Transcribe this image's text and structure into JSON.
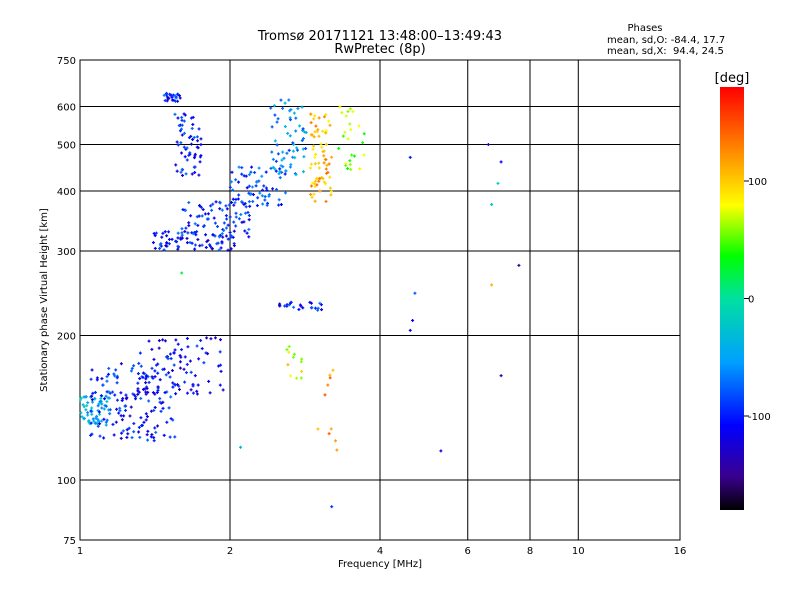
{
  "header": {
    "title_line1": "Tromsø 20171121 13:48:00–13:49:43",
    "title_line2": "RwPretec (8p)"
  },
  "phases_box": {
    "heading": "Phases",
    "line_o": "mean, sd,O: -84.4, 17.7",
    "line_x": "mean, sd,X:  94.4, 24.5"
  },
  "colorbar": {
    "label": "[deg]",
    "range": [
      -180,
      180
    ],
    "ticks": [
      {
        "value": 100,
        "label": "100"
      },
      {
        "value": 0,
        "label": "0"
      },
      {
        "value": -100,
        "label": "-100"
      }
    ]
  },
  "chart_data": {
    "type": "scatter",
    "title": "Tromsø 20171121 13:48:00–13:49:43",
    "subtitle": "RwPretec (8p)",
    "xlabel": "Frequency [MHz]",
    "ylabel": "Stationary phase Virtual Height [km]",
    "x_scale": "log2",
    "y_scale": "log",
    "xlim": [
      1,
      16
    ],
    "ylim": [
      75,
      750
    ],
    "x_ticks": [
      1,
      2,
      4,
      6,
      8,
      10,
      16
    ],
    "x_tick_labels": [
      "1",
      "2",
      "4",
      "6",
      "8",
      "10",
      "16"
    ],
    "x_gridlines": [
      2,
      4,
      6,
      8,
      10
    ],
    "y_ticks": [
      75,
      100,
      200,
      300,
      400,
      500,
      600,
      750
    ],
    "y_tick_labels": [
      "75",
      "100",
      "200",
      "300",
      "400",
      "500",
      "600",
      "750"
    ],
    "y_gridlines": [
      100,
      200,
      300,
      400,
      500,
      600
    ],
    "grid": true,
    "color_by": "phase (deg)",
    "point_groups": [
      {
        "x_range": [
          1.47,
          1.6
        ],
        "y_range": [
          615,
          640
        ],
        "n": 25,
        "phase": -95
      },
      {
        "x_range": [
          1.55,
          1.75
        ],
        "y_range": [
          430,
          580
        ],
        "n": 60,
        "phase": -100
      },
      {
        "x_range": [
          1.4,
          2.05
        ],
        "y_range": [
          300,
          330
        ],
        "n": 70,
        "phase": -100
      },
      {
        "x_range": [
          1.6,
          2.2
        ],
        "y_range": [
          320,
          380
        ],
        "n": 80,
        "phase": -95
      },
      {
        "x_range": [
          2.0,
          2.6
        ],
        "y_range": [
          370,
          450
        ],
        "n": 70,
        "phase": -85
      },
      {
        "x_range": [
          2.4,
          2.85
        ],
        "y_range": [
          430,
          620
        ],
        "n": 60,
        "phase": -60
      },
      {
        "x_range": [
          2.9,
          3.2
        ],
        "y_range": [
          380,
          580
        ],
        "n": 70,
        "phase": 110
      },
      {
        "x_range": [
          3.3,
          3.75
        ],
        "y_range": [
          440,
          600
        ],
        "n": 25,
        "phase": 60
      },
      {
        "x_range": [
          2.5,
          3.1
        ],
        "y_range": [
          225,
          235
        ],
        "n": 25,
        "phase": -95
      },
      {
        "x_range": [
          1.0,
          1.15
        ],
        "y_range": [
          130,
          150
        ],
        "n": 60,
        "phase": -40
      },
      {
        "x_range": [
          1.05,
          1.55
        ],
        "y_range": [
          120,
          175
        ],
        "n": 150,
        "phase": -100
      },
      {
        "x_range": [
          1.3,
          1.95
        ],
        "y_range": [
          150,
          200
        ],
        "n": 90,
        "phase": -110
      },
      {
        "x_range": [
          2.6,
          2.8
        ],
        "y_range": [
          160,
          190
        ],
        "n": 12,
        "phase": 80
      },
      {
        "x_range": [
          3.0,
          3.3
        ],
        "y_range": [
          115,
          190
        ],
        "n": 10,
        "phase": 130
      }
    ],
    "isolated_points": [
      {
        "x": 4.6,
        "y": 470,
        "phase": -100
      },
      {
        "x": 6.6,
        "y": 500,
        "phase": -130
      },
      {
        "x": 7.0,
        "y": 460,
        "phase": -110
      },
      {
        "x": 6.9,
        "y": 415,
        "phase": -10
      },
      {
        "x": 6.7,
        "y": 375,
        "phase": -20
      },
      {
        "x": 7.6,
        "y": 280,
        "phase": -140
      },
      {
        "x": 6.7,
        "y": 255,
        "phase": 110
      },
      {
        "x": 4.7,
        "y": 245,
        "phase": -80
      },
      {
        "x": 4.65,
        "y": 215,
        "phase": -110
      },
      {
        "x": 4.6,
        "y": 205,
        "phase": -120
      },
      {
        "x": 7.0,
        "y": 165,
        "phase": -140
      },
      {
        "x": 5.3,
        "y": 115,
        "phase": -120
      },
      {
        "x": 3.2,
        "y": 88,
        "phase": -90
      },
      {
        "x": 2.1,
        "y": 117,
        "phase": -40
      },
      {
        "x": 1.6,
        "y": 270,
        "phase": 20
      }
    ]
  }
}
